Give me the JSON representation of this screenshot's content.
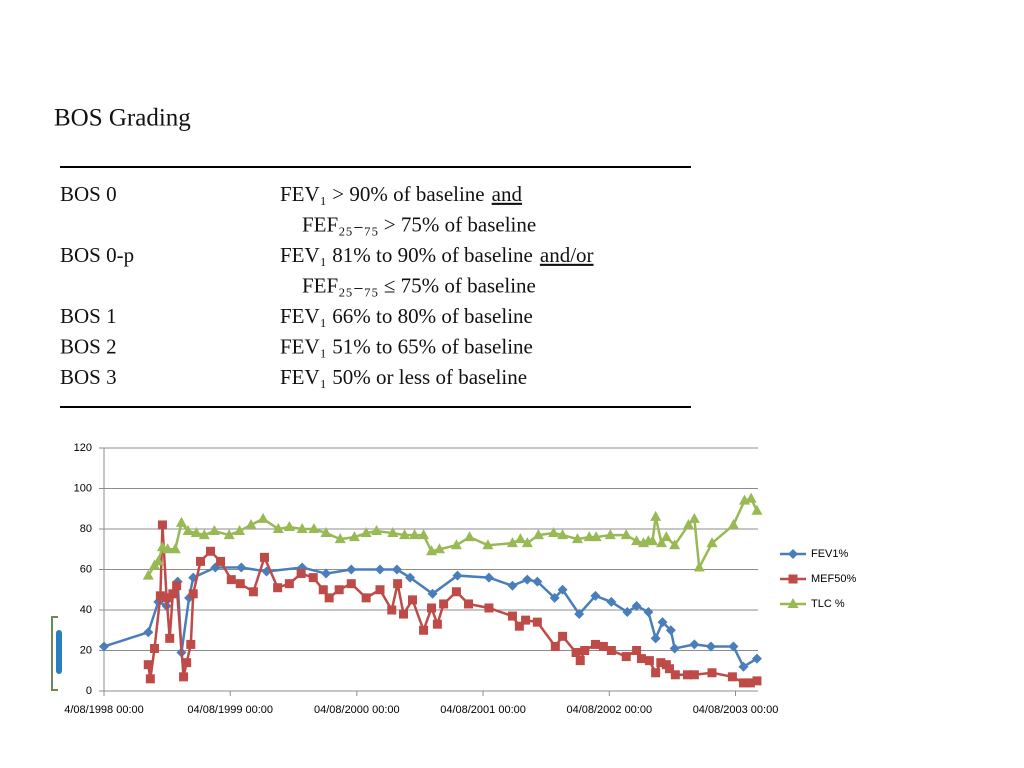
{
  "title": "BOS Grading",
  "table": {
    "rows": [
      {
        "grade": "BOS 0",
        "lines": [
          "FEV₁ > 90% of baseline",
          "FEF₂₅₋₇₅ > 75% of baseline"
        ],
        "connector": "and"
      },
      {
        "grade": "BOS 0-p",
        "lines": [
          "FEV₁ 81% to 90% of baseline",
          "FEF₂₅₋₇₅ ≤ 75% of baseline"
        ],
        "connector": "and/or"
      },
      {
        "grade": "BOS 1",
        "lines": [
          "FEV₁ 66% to 80% of baseline"
        ]
      },
      {
        "grade": "BOS 2",
        "lines": [
          "FEV₁ 51% to 65% of baseline"
        ]
      },
      {
        "grade": "BOS 3",
        "lines": [
          "FEV₁ 50% or less of baseline"
        ]
      }
    ]
  },
  "chart_data": {
    "type": "line",
    "xlim": [
      "1998-08-04",
      "2003-10-08"
    ],
    "xticks": [
      {
        "value": "1998-08-04",
        "label": "4/08/1998 00:00"
      },
      {
        "value": "1999-08-04",
        "label": "04/08/1999 00:00"
      },
      {
        "value": "2000-08-04",
        "label": "04/08/2000 00:00"
      },
      {
        "value": "2001-08-04",
        "label": "04/08/2001 00:00"
      },
      {
        "value": "2002-08-04",
        "label": "04/08/2002 00:00"
      },
      {
        "value": "2003-08-04",
        "label": "04/08/2003 00:00"
      }
    ],
    "ylim": [
      0,
      120
    ],
    "yticks": [
      0,
      20,
      40,
      60,
      80,
      100,
      120
    ],
    "grid": true,
    "legend": "right",
    "series": [
      {
        "name": "FEV1%",
        "color": "#4a7ebb",
        "marker": "diamond",
        "x": [
          "1998-08-04",
          "1998-12-10",
          "1999-01-08",
          "1999-02-01",
          "1999-03-05",
          "1999-03-16",
          "1999-04-07",
          "1999-04-19",
          "1999-06-22",
          "1999-09-05",
          "1999-11-17",
          "2000-02-28",
          "2000-05-07",
          "2000-07-19",
          "2000-10-10",
          "2000-11-28",
          "2001-01-05",
          "2001-03-11",
          "2001-05-22",
          "2001-08-21",
          "2001-10-28",
          "2001-12-10",
          "2002-01-08",
          "2002-02-27",
          "2002-03-22",
          "2002-05-09",
          "2002-06-25",
          "2002-08-10",
          "2002-09-25",
          "2002-10-22",
          "2002-11-25",
          "2002-12-16",
          "2003-01-05",
          "2003-01-29",
          "2003-02-09",
          "2003-04-07",
          "2003-05-25",
          "2003-07-29",
          "2003-08-27",
          "2003-10-05"
        ],
        "values": [
          22,
          29,
          44,
          42,
          54,
          19,
          46,
          56,
          61,
          61,
          59,
          61,
          58,
          60,
          60,
          60,
          56,
          48,
          57,
          56,
          52,
          55,
          54,
          46,
          50,
          38,
          47,
          44,
          39,
          42,
          39,
          26,
          34,
          30,
          21,
          23,
          22,
          22,
          12,
          16
        ]
      },
      {
        "name": "MEF50%",
        "color": "#be4b48",
        "marker": "square",
        "x": [
          "1998-12-10",
          "1998-12-16",
          "1998-12-28",
          "1999-01-14",
          "1999-01-20",
          "1999-02-01",
          "1999-02-10",
          "1999-02-19",
          "1999-03-02",
          "1999-03-22",
          "1999-03-31",
          "1999-04-12",
          "1999-04-19",
          "1999-05-10",
          "1999-06-08",
          "1999-07-07",
          "1999-08-07",
          "1999-09-02",
          "1999-10-10",
          "1999-11-11",
          "1999-12-19",
          "2000-01-22",
          "2000-02-25",
          "2000-03-31",
          "2000-04-29",
          "2000-05-16",
          "2000-06-14",
          "2000-07-19",
          "2000-08-31",
          "2000-10-10",
          "2000-11-13",
          "2000-11-30",
          "2000-12-17",
          "2001-01-12",
          "2001-02-13",
          "2001-03-08",
          "2001-03-25",
          "2001-04-12",
          "2001-05-19",
          "2001-06-23",
          "2001-08-21",
          "2001-10-28",
          "2001-11-17",
          "2001-12-05",
          "2002-01-08",
          "2002-03-01",
          "2002-03-22",
          "2002-04-30",
          "2002-05-12",
          "2002-05-25",
          "2002-06-25",
          "2002-07-18",
          "2002-08-10",
          "2002-09-22",
          "2002-10-22",
          "2002-11-05",
          "2002-11-28",
          "2002-12-16",
          "2002-12-31",
          "2003-01-16",
          "2003-01-25",
          "2003-02-11",
          "2003-03-18",
          "2003-04-07",
          "2003-05-28",
          "2003-07-26",
          "2003-08-27",
          "2003-09-16",
          "2003-10-05"
        ],
        "values": [
          13,
          6,
          21,
          47,
          82,
          46,
          26,
          48,
          52,
          7,
          14,
          23,
          48,
          64,
          69,
          64,
          55,
          53,
          49,
          66,
          51,
          53,
          58,
          56,
          50,
          46,
          50,
          53,
          46,
          50,
          40,
          53,
          38,
          45,
          30,
          41,
          33,
          43,
          49,
          43,
          41,
          37,
          32,
          35,
          34,
          22,
          27,
          19,
          15,
          20,
          23,
          22,
          20,
          17,
          20,
          16,
          15,
          9,
          14,
          13,
          11,
          8,
          8,
          8,
          9,
          7,
          4,
          4,
          5
        ]
      },
      {
        "name": "TLC %",
        "color": "#98b954",
        "marker": "triangle",
        "x": [
          "1998-12-10",
          "1998-12-28",
          "1999-01-08",
          "1999-01-20",
          "1999-02-04",
          "1999-02-26",
          "1999-03-16",
          "1999-04-04",
          "1999-04-28",
          "1999-05-21",
          "1999-06-19",
          "1999-08-01",
          "1999-08-31",
          "1999-10-03",
          "1999-11-07",
          "1999-12-21",
          "2000-01-22",
          "2000-02-28",
          "2000-04-02",
          "2000-05-07",
          "2000-06-17",
          "2000-07-28",
          "2000-08-31",
          "2000-09-30",
          "2000-11-16",
          "2000-12-20",
          "2001-01-18",
          "2001-02-13",
          "2001-03-08",
          "2001-03-31",
          "2001-05-19",
          "2001-06-26",
          "2001-08-18",
          "2001-10-28",
          "2001-11-20",
          "2001-12-10",
          "2002-01-11",
          "2002-02-24",
          "2002-03-22",
          "2002-05-04",
          "2002-06-07",
          "2002-06-27",
          "2002-08-07",
          "2002-09-22",
          "2002-10-22",
          "2002-11-11",
          "2002-11-25",
          "2002-12-07",
          "2002-12-16",
          "2003-01-02",
          "2003-01-16",
          "2003-02-09",
          "2003-03-21",
          "2003-04-07",
          "2003-04-21",
          "2003-05-28",
          "2003-07-29",
          "2003-08-30",
          "2003-09-18",
          "2003-10-05"
        ],
        "values": [
          57,
          62,
          64,
          71,
          70,
          70,
          83,
          79,
          78,
          77,
          79,
          77,
          79,
          82,
          85,
          80,
          81,
          80,
          80,
          78,
          75,
          76,
          78,
          79,
          78,
          77,
          77,
          77,
          69,
          70,
          72,
          76,
          72,
          73,
          75,
          73,
          77,
          78,
          77,
          75,
          76,
          76,
          77,
          77,
          74,
          73,
          74,
          74,
          86,
          73,
          76,
          72,
          82,
          85,
          61,
          73,
          82,
          94,
          95,
          89
        ]
      }
    ]
  }
}
